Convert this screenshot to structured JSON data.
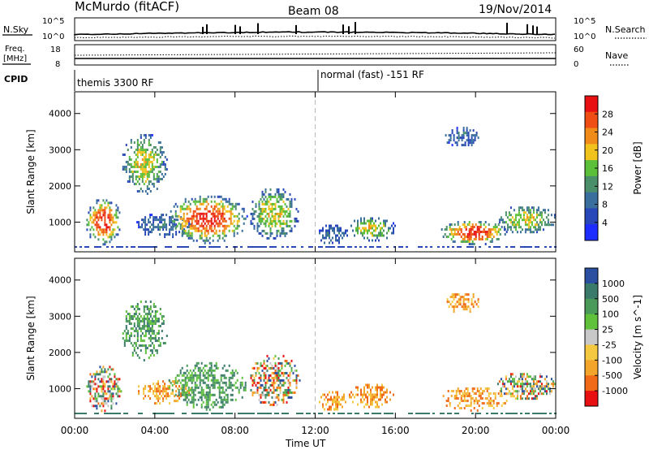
{
  "header": {
    "station": "McMurdo (fitACF)",
    "beam": "Beam 08",
    "date": "19/Nov/2014"
  },
  "top_panels": {
    "nsky_label": "N.Sky",
    "nsky_ticks": [
      "10^5",
      "10^0"
    ],
    "nsearch_label": "N.Search",
    "nsearch_ticks": [
      "10^5",
      "10^0"
    ],
    "freq_label": "Freq.",
    "freq_unit": "[MHz]",
    "freq_ticks": [
      "18",
      "8"
    ],
    "nave_label": "Nave",
    "nave_ticks": [
      "60",
      "0"
    ],
    "cpid_label": "CPID",
    "cpid_modes": [
      {
        "name": "themis 3300 RF",
        "start_hour": 0
      },
      {
        "name": "normal (fast) -151 RF",
        "start_hour": 12
      }
    ]
  },
  "colors": {
    "power": [
      "#1e2dff",
      "#2847b8",
      "#3a6e9c",
      "#4a8f6a",
      "#5bbf3a",
      "#f2c21c",
      "#f08a18",
      "#f04d14",
      "#e81010"
    ],
    "velocity": [
      "#e81010",
      "#f06a18",
      "#f2a52a",
      "#f5c842",
      "#c8c8c8",
      "#5fc23a",
      "#4a9a5a",
      "#3a7a6a",
      "#2a4fa0"
    ]
  },
  "chart_data": [
    {
      "type": "heatmap",
      "title": "",
      "xlabel": "Time UT",
      "ylabel": "Slant Range [km]",
      "xlim": [
        0,
        24
      ],
      "ylim": [
        180,
        4600
      ],
      "x_ticks": [
        "00:00",
        "04:00",
        "08:00",
        "12:00",
        "16:00",
        "20:00",
        "00:00"
      ],
      "y_ticks": [
        "1000",
        "2000",
        "3000",
        "4000"
      ],
      "colorbar": {
        "label": "Power [dB]",
        "ticks": [
          "28",
          "24",
          "20",
          "16",
          "12",
          "8",
          "4"
        ]
      },
      "echo_regions": [
        {
          "t": [
            0.5,
            2.3
          ],
          "r": [
            400,
            1700
          ],
          "level": "high"
        },
        {
          "t": [
            2.3,
            4.6
          ],
          "r": [
            1800,
            3500
          ],
          "level": "medium"
        },
        {
          "t": [
            3.0,
            5.8
          ],
          "r": [
            600,
            1300
          ],
          "level": "low"
        },
        {
          "t": [
            4.6,
            8.6
          ],
          "r": [
            450,
            1800
          ],
          "level": "high"
        },
        {
          "t": [
            8.6,
            11.2
          ],
          "r": [
            550,
            2000
          ],
          "level": "medium"
        },
        {
          "t": [
            12.1,
            13.6
          ],
          "r": [
            400,
            1000
          ],
          "level": "low"
        },
        {
          "t": [
            13.6,
            16.0
          ],
          "r": [
            500,
            1200
          ],
          "level": "medium"
        },
        {
          "t": [
            18.2,
            21.6
          ],
          "r": [
            400,
            1100
          ],
          "level": "high"
        },
        {
          "t": [
            18.4,
            20.2
          ],
          "r": [
            3100,
            3700
          ],
          "level": "low"
        },
        {
          "t": [
            21.0,
            24.0
          ],
          "r": [
            700,
            1500
          ],
          "level": "medium"
        }
      ]
    },
    {
      "type": "heatmap",
      "title": "",
      "xlabel": "Time UT",
      "ylabel": "Slant Range [km]",
      "xlim": [
        0,
        24
      ],
      "ylim": [
        180,
        4600
      ],
      "x_ticks": [
        "00:00",
        "04:00",
        "08:00",
        "12:00",
        "16:00",
        "20:00",
        "00:00"
      ],
      "y_ticks": [
        "1000",
        "2000",
        "3000",
        "4000"
      ],
      "colorbar": {
        "label": "Velocity [m s^-1]",
        "ticks": [
          "1000",
          "500",
          "100",
          "25",
          "-25",
          "-100",
          "-500",
          "-1000"
        ]
      },
      "echo_regions": [
        {
          "t": [
            0.5,
            2.3
          ],
          "r": [
            400,
            1700
          ],
          "level": "mixed"
        },
        {
          "t": [
            2.3,
            4.6
          ],
          "r": [
            1800,
            3500
          ],
          "level": "positive"
        },
        {
          "t": [
            3.0,
            5.8
          ],
          "r": [
            600,
            1300
          ],
          "level": "negative"
        },
        {
          "t": [
            4.6,
            8.6
          ],
          "r": [
            450,
            1800
          ],
          "level": "positive"
        },
        {
          "t": [
            8.6,
            11.2
          ],
          "r": [
            550,
            2000
          ],
          "level": "mixed"
        },
        {
          "t": [
            12.1,
            13.6
          ],
          "r": [
            400,
            1000
          ],
          "level": "negative"
        },
        {
          "t": [
            13.6,
            16.0
          ],
          "r": [
            500,
            1200
          ],
          "level": "negative"
        },
        {
          "t": [
            18.2,
            21.6
          ],
          "r": [
            400,
            1100
          ],
          "level": "negative"
        },
        {
          "t": [
            18.4,
            20.2
          ],
          "r": [
            3100,
            3700
          ],
          "level": "negative"
        },
        {
          "t": [
            21.0,
            24.0
          ],
          "r": [
            700,
            1500
          ],
          "level": "mixed"
        }
      ]
    }
  ]
}
